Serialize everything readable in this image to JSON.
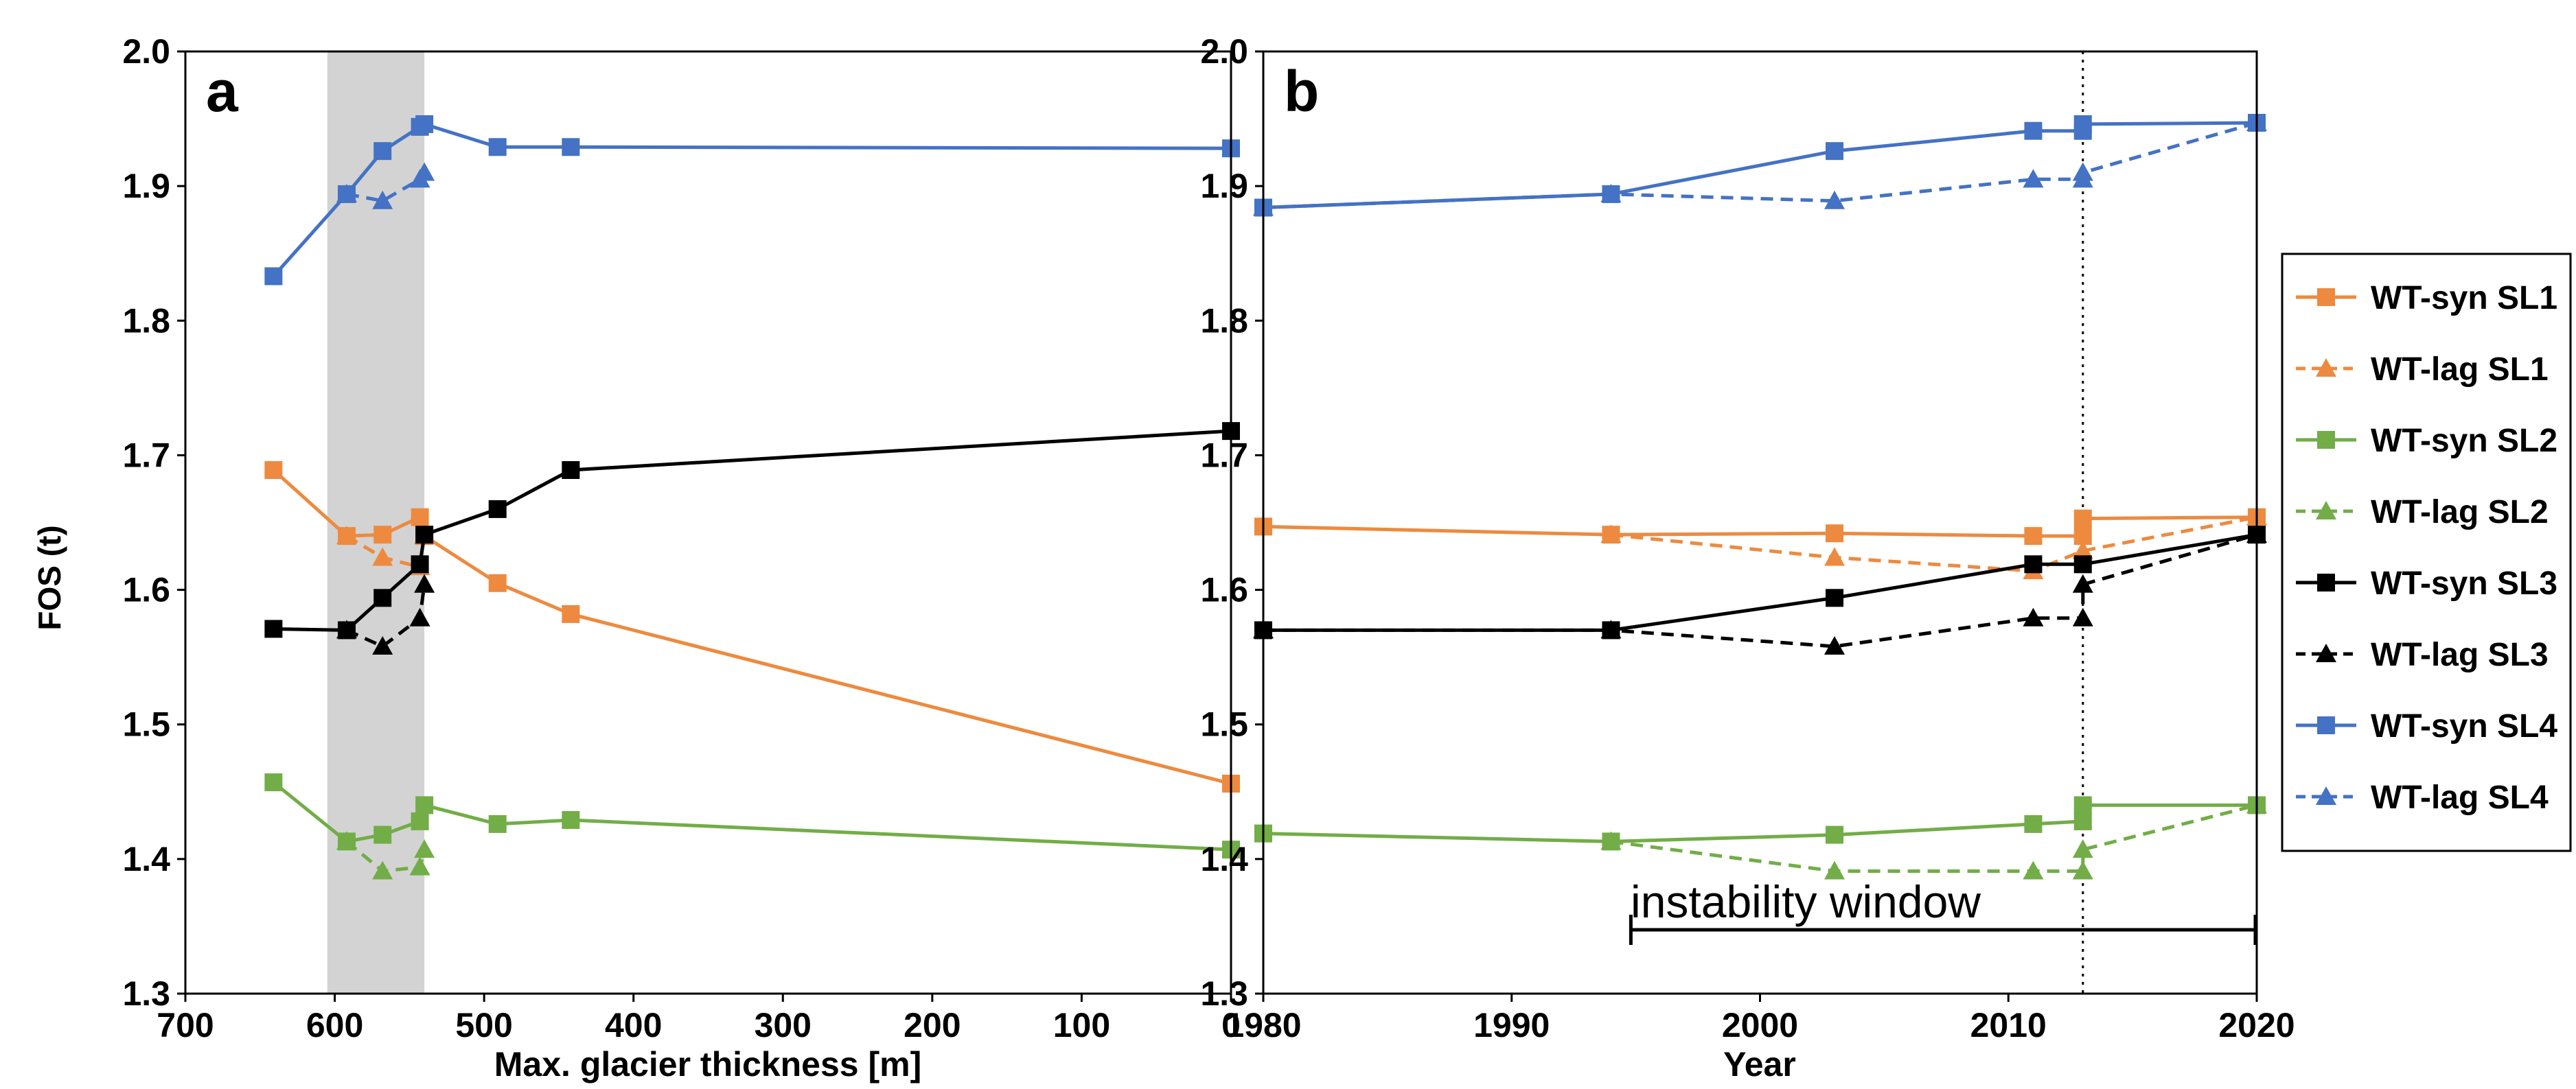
{
  "figure": {
    "legend": [
      {
        "label": "WT-syn SL1",
        "color": "#ED8A3F",
        "marker": "square",
        "dash": false
      },
      {
        "label": "WT-lag SL1",
        "color": "#ED8A3F",
        "marker": "triangle",
        "dash": true
      },
      {
        "label": "WT-syn SL2",
        "color": "#72AD47",
        "marker": "square",
        "dash": false
      },
      {
        "label": "WT-lag SL2",
        "color": "#72AD47",
        "marker": "triangle",
        "dash": true
      },
      {
        "label": "WT-syn SL3",
        "color": "#000000",
        "marker": "square",
        "dash": false
      },
      {
        "label": "WT-lag SL3",
        "color": "#000000",
        "marker": "triangle",
        "dash": true
      },
      {
        "label": "WT-syn SL4",
        "color": "#4472C4",
        "marker": "square",
        "dash": false
      },
      {
        "label": "WT-lag SL4",
        "color": "#4472C4",
        "marker": "triangle",
        "dash": true
      }
    ],
    "shade_color": "#D3D3D3"
  },
  "chart_data": [
    {
      "type": "line",
      "panel": "a",
      "xlabel": "Max. glacier thickness [m]",
      "ylabel": "FOS (t)",
      "xlim": [
        700,
        0
      ],
      "ylim": [
        1.3,
        2.0
      ],
      "xticks": [
        700,
        600,
        500,
        400,
        300,
        200,
        100,
        0
      ],
      "yticks": [
        1.3,
        1.4,
        1.5,
        1.6,
        1.7,
        1.8,
        1.9,
        2.0
      ],
      "shaded_range": [
        605,
        540
      ],
      "series": [
        {
          "name": "WT-syn SL1",
          "x": [
            641,
            592,
            568,
            543,
            540,
            491,
            442,
            0
          ],
          "y": [
            1.689,
            1.64,
            1.641,
            1.654,
            1.64,
            1.605,
            1.582,
            1.456
          ]
        },
        {
          "name": "WT-lag SL1",
          "x": [
            592,
            568,
            543,
            540
          ],
          "y": [
            1.64,
            1.624,
            1.617,
            1.64
          ]
        },
        {
          "name": "WT-syn SL2",
          "x": [
            641,
            592,
            568,
            543,
            540,
            491,
            442,
            0
          ],
          "y": [
            1.457,
            1.413,
            1.418,
            1.428,
            1.44,
            1.426,
            1.429,
            1.407
          ]
        },
        {
          "name": "WT-lag SL2",
          "x": [
            592,
            568,
            543,
            540
          ],
          "y": [
            1.413,
            1.391,
            1.394,
            1.407
          ]
        },
        {
          "name": "WT-syn SL3",
          "x": [
            641,
            592,
            568,
            543,
            540,
            491,
            442,
            0
          ],
          "y": [
            1.571,
            1.57,
            1.594,
            1.619,
            1.641,
            1.66,
            1.689,
            1.718
          ]
        },
        {
          "name": "WT-lag SL3",
          "x": [
            592,
            568,
            543,
            540
          ],
          "y": [
            1.57,
            1.558,
            1.579,
            1.604
          ]
        },
        {
          "name": "WT-syn SL4",
          "x": [
            641,
            592,
            568,
            543,
            540,
            491,
            442,
            0
          ],
          "y": [
            1.833,
            1.894,
            1.926,
            1.944,
            1.946,
            1.929,
            1.929,
            1.928
          ]
        },
        {
          "name": "WT-lag SL4",
          "x": [
            592,
            568,
            543,
            540
          ],
          "y": [
            1.894,
            1.889,
            1.905,
            1.91
          ]
        }
      ]
    },
    {
      "type": "line",
      "panel": "b",
      "xlabel": "Year",
      "ylabel": "",
      "xlim": [
        1980,
        2020
      ],
      "ylim": [
        1.3,
        2.0
      ],
      "xticks": [
        1980,
        1990,
        2000,
        2010,
        2020
      ],
      "yticks": [
        1.3,
        1.4,
        1.5,
        1.6,
        1.7,
        1.8,
        1.9,
        2.0
      ],
      "vline_x": 2013,
      "annotation": {
        "text": "instability window",
        "from": 1994.8,
        "to": 2020
      },
      "series": [
        {
          "name": "WT-syn SL1",
          "x": [
            1980,
            1994,
            2003,
            2011,
            2013,
            2013,
            2020
          ],
          "y": [
            1.647,
            1.641,
            1.642,
            1.64,
            1.64,
            1.653,
            1.654
          ]
        },
        {
          "name": "WT-lag SL1",
          "x": [
            1994,
            2003,
            2011,
            2013,
            2020
          ],
          "y": [
            1.641,
            1.624,
            1.614,
            1.629,
            1.654
          ]
        },
        {
          "name": "WT-syn SL2",
          "x": [
            1980,
            1994,
            2003,
            2011,
            2013,
            2013,
            2020
          ],
          "y": [
            1.419,
            1.413,
            1.418,
            1.426,
            1.428,
            1.44,
            1.44
          ]
        },
        {
          "name": "WT-lag SL2",
          "x": [
            1994,
            2003,
            2011,
            2013,
            2013,
            2020
          ],
          "y": [
            1.413,
            1.391,
            1.391,
            1.391,
            1.407,
            1.44
          ]
        },
        {
          "name": "WT-syn SL3",
          "x": [
            1980,
            1994,
            2003,
            2011,
            2013,
            2020
          ],
          "y": [
            1.57,
            1.57,
            1.594,
            1.619,
            1.619,
            1.641
          ]
        },
        {
          "name": "WT-lag SL3",
          "x": [
            1980,
            1994,
            2003,
            2011,
            2013,
            2013,
            2020
          ],
          "y": [
            1.57,
            1.57,
            1.558,
            1.579,
            1.579,
            1.604,
            1.641
          ]
        },
        {
          "name": "WT-syn SL4",
          "x": [
            1980,
            1994,
            2003,
            2011,
            2013,
            2013,
            2020
          ],
          "y": [
            1.884,
            1.894,
            1.926,
            1.941,
            1.941,
            1.946,
            1.947
          ]
        },
        {
          "name": "WT-lag SL4",
          "x": [
            1980,
            1994,
            2003,
            2011,
            2013,
            2013,
            2020
          ],
          "y": [
            1.884,
            1.894,
            1.889,
            1.905,
            1.905,
            1.91,
            1.947
          ]
        }
      ]
    }
  ]
}
